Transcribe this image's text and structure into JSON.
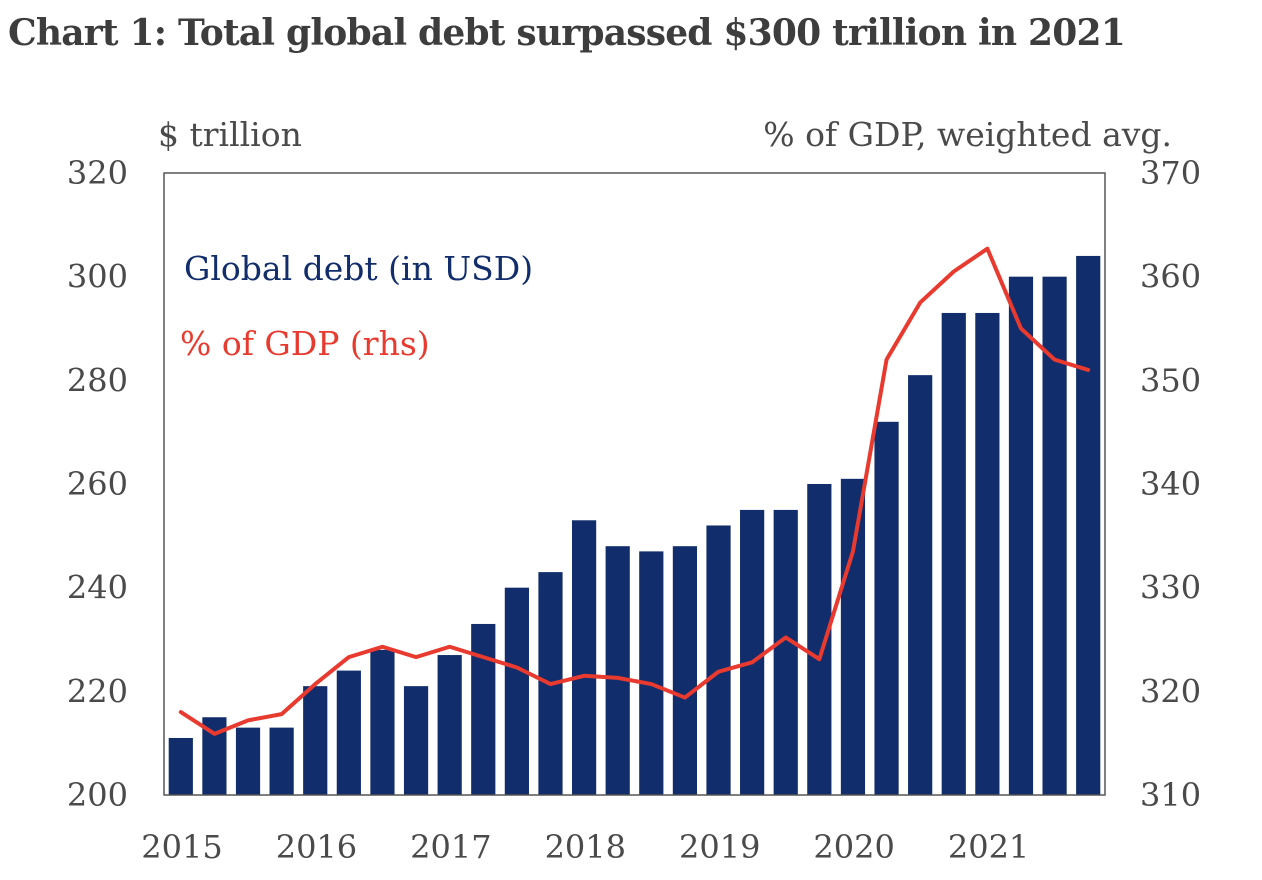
{
  "colors": {
    "bar": "#112d6b",
    "line": "#e83a2e",
    "axis": "#555555",
    "text": "#4a4a4a",
    "title": "#3d3d3d"
  },
  "chart_data": {
    "type": "bar",
    "title": "Chart 1: Total global debt surpassed $300 trillion in 2021",
    "ylabel_left": "$ trillion",
    "ylabel_right": "% of GDP, weighted avg.",
    "ylim_left": [
      200,
      320
    ],
    "ylim_right": [
      310,
      370
    ],
    "yticks_left": [
      "200",
      "220",
      "240",
      "260",
      "280",
      "300",
      "320"
    ],
    "yticks_right": [
      "310",
      "320",
      "330",
      "340",
      "350",
      "360",
      "370"
    ],
    "x_tick_labels": [
      "2015",
      "2016",
      "2017",
      "2018",
      "2019",
      "2020",
      "2021"
    ],
    "grid": false,
    "legend_placement": "top-left",
    "categories": [
      "2015Q1",
      "2015Q2",
      "2015Q3",
      "2015Q4",
      "2016Q1",
      "2016Q2",
      "2016Q3",
      "2016Q4",
      "2017Q1",
      "2017Q2",
      "2017Q3",
      "2017Q4",
      "2018Q1",
      "2018Q2",
      "2018Q3",
      "2018Q4",
      "2019Q1",
      "2019Q2",
      "2019Q3",
      "2019Q4",
      "2020Q1",
      "2020Q2",
      "2020Q3",
      "2020Q4",
      "2021Q1",
      "2021Q2",
      "2021Q3",
      "2021Q4"
    ],
    "series": [
      {
        "name": "Global debt (in USD)",
        "type": "bar",
        "axis": "left",
        "values": [
          211,
          215,
          213,
          213,
          221,
          224,
          228,
          221,
          227,
          233,
          240,
          243,
          253,
          248,
          247,
          248,
          252,
          255,
          255,
          260,
          261,
          272,
          281,
          293,
          293,
          300,
          300,
          304
        ]
      },
      {
        "name": "% of GDP (rhs)",
        "type": "line",
        "axis": "right",
        "values": [
          318,
          315.9,
          317.2,
          317.8,
          320.7,
          323.3,
          324.3,
          323.3,
          324.3,
          323.3,
          322.3,
          320.7,
          321.5,
          321.3,
          320.7,
          319.4,
          321.9,
          322.8,
          325.2,
          323.1,
          333.5,
          352,
          357.5,
          360.5,
          362.7,
          355,
          352,
          351
        ]
      }
    ]
  }
}
